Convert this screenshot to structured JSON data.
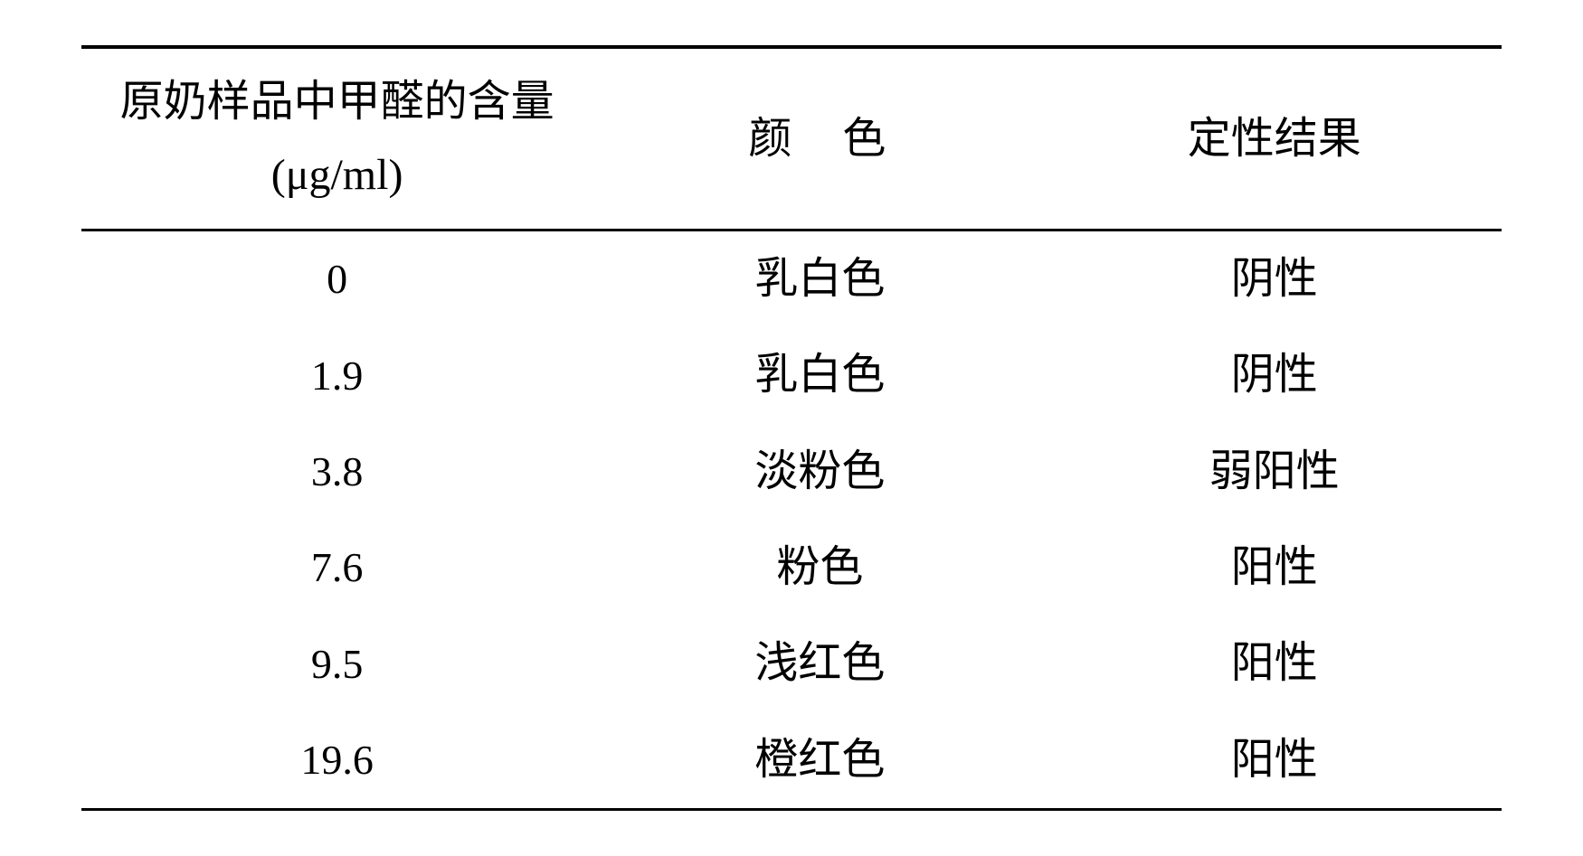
{
  "table": {
    "columns": {
      "concentration": "原奶样品中甲醛的含量(μg/ml)",
      "color": "颜色",
      "result": "定性结果"
    },
    "rows": [
      {
        "concentration": "0",
        "color": "乳白色",
        "result": "阴性"
      },
      {
        "concentration": "1.9",
        "color": "乳白色",
        "result": "阴性"
      },
      {
        "concentration": "3.8",
        "color": "淡粉色",
        "result": "弱阳性"
      },
      {
        "concentration": "7.6",
        "color": "粉色",
        "result": "阳性"
      },
      {
        "concentration": "9.5",
        "color": "浅红色",
        "result": "阳性"
      },
      {
        "concentration": "19.6",
        "color": "橙红色",
        "result": "阳性"
      }
    ],
    "styling": {
      "border_color": "#000000",
      "top_border_width": 4,
      "header_border_width": 3,
      "bottom_border_width": 3,
      "background_color": "#ffffff",
      "text_color": "#000000",
      "header_fontsize": 48,
      "cell_fontsize": 48,
      "font_family_cjk": "KaiTi",
      "font_family_numeric": "Times New Roman",
      "column_widths_pct": [
        36,
        32,
        32
      ],
      "row_padding_vertical": 22
    }
  }
}
